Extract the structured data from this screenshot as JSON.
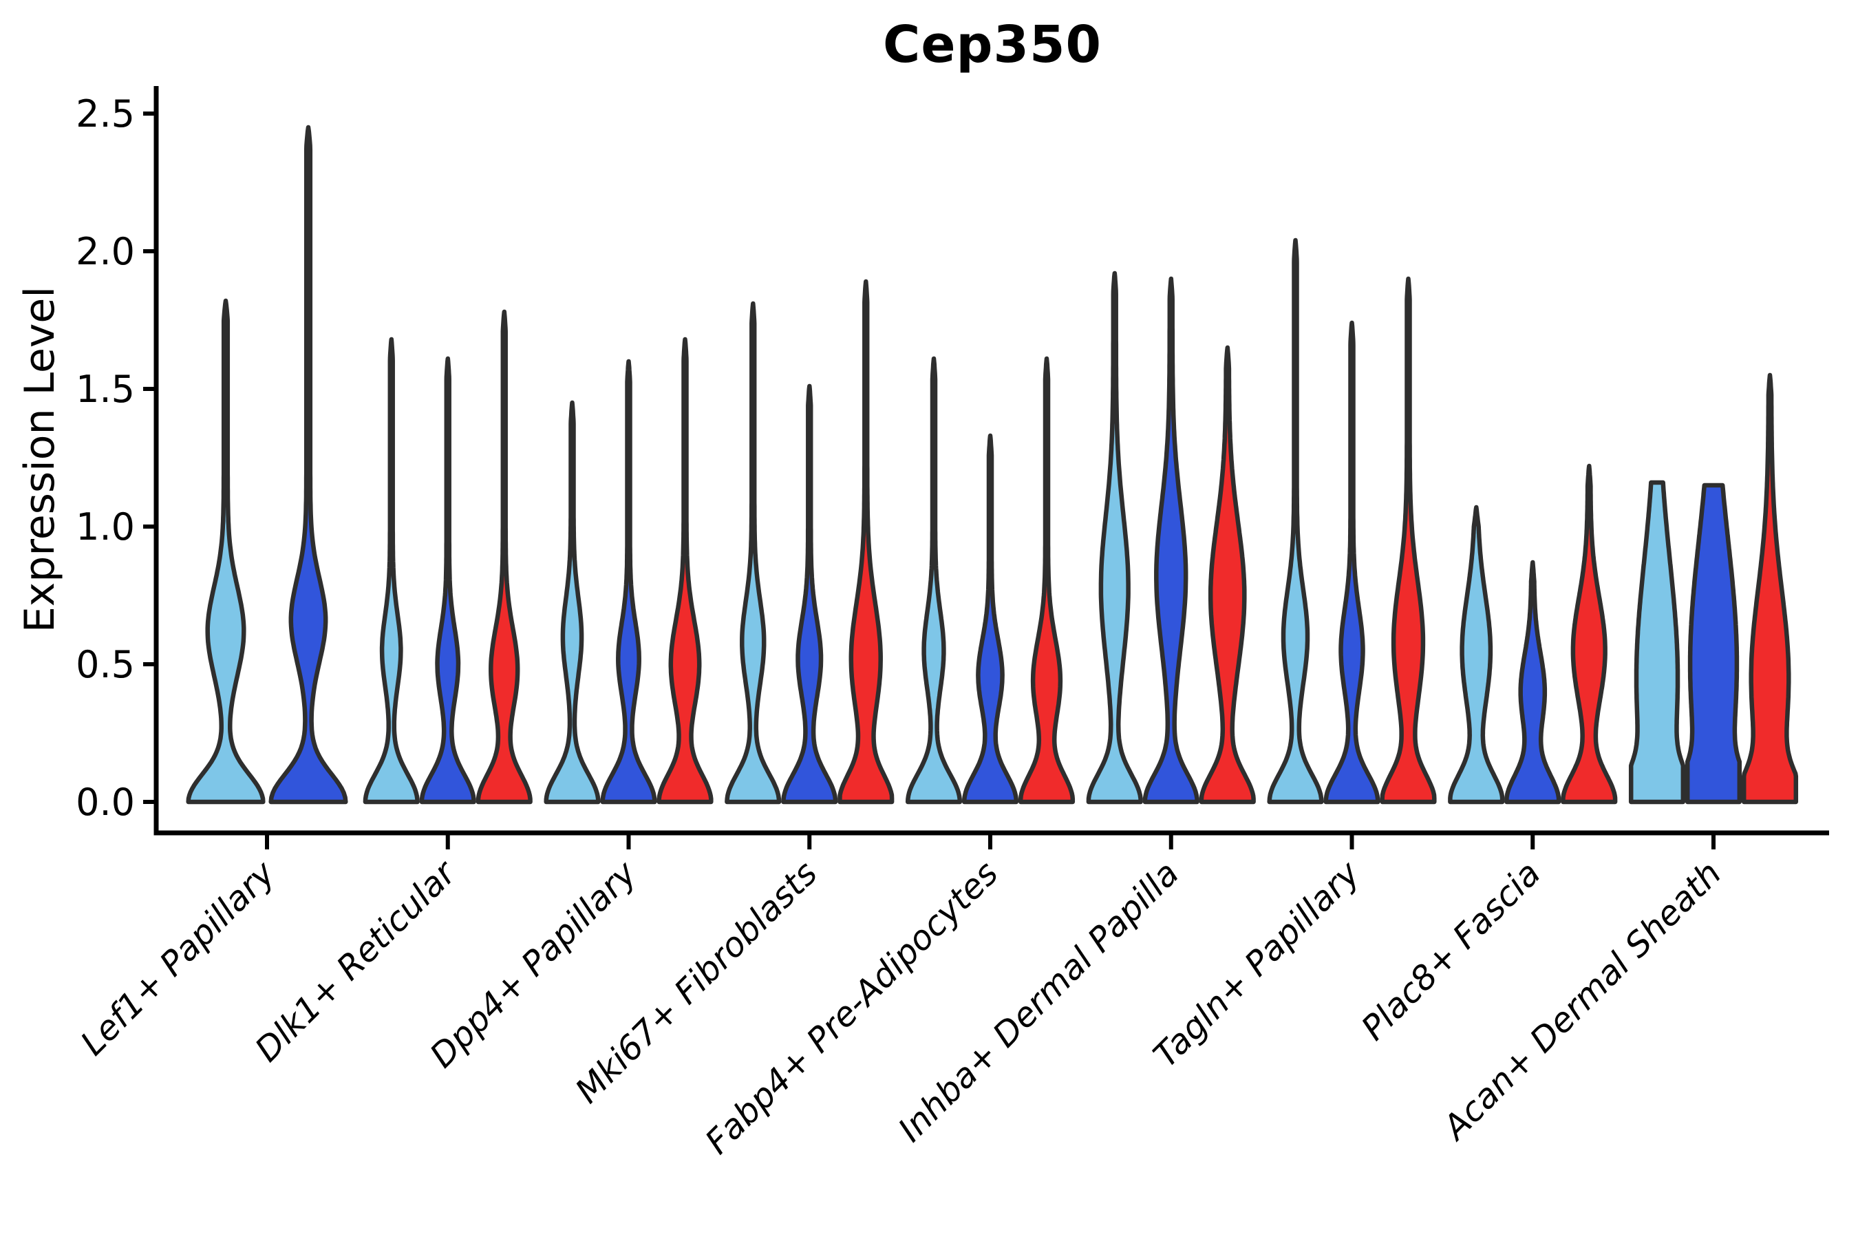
{
  "title": "Cep350",
  "axes": {
    "ylabel": "Expression Level",
    "xlabel": "",
    "ytick_labels": [
      "0.0",
      "0.5",
      "1.0",
      "1.5",
      "2.0",
      "2.5"
    ],
    "ytick_values": [
      0.0,
      0.5,
      1.0,
      1.5,
      2.0,
      2.5
    ]
  },
  "palette": {
    "light_blue": "#7EC6E8",
    "royal_blue": "#3155DB",
    "red": "#F02B2B",
    "edge": "#2E2E2E",
    "axis": "#000000"
  },
  "chart_data": {
    "type": "violin",
    "title": "Cep350",
    "xlabel": "",
    "ylabel": "Expression Level",
    "ylim": [
      0,
      2.72
    ],
    "yticks": [
      0.0,
      0.5,
      1.0,
      1.5,
      2.0,
      2.5
    ],
    "grid": false,
    "legend_position": "none",
    "x_tick_rotation_deg": 45,
    "categories": [
      "Lef1+ Papillary",
      "Dlk1+ Reticular",
      "Dpp4+ Papillary",
      "Mki67+ Fibroblasts",
      "Fabp4+ Pre-Adipocytes",
      "Inhba+ Dermal Papilla",
      "Tagln+ Papillary",
      "Plac8+ Fascia",
      "Acan+ Dermal Sheath"
    ],
    "groups": [
      {
        "category": "Lef1+ Papillary",
        "violins": [
          {
            "color": "light_blue",
            "max_expression": 1.82,
            "bulge_center": 0.62,
            "bulge_sigma": 0.16,
            "bulge_amp": 0.42,
            "blunt_top": false
          },
          {
            "color": "royal_blue",
            "max_expression": 2.45,
            "bulge_center": 0.66,
            "bulge_sigma": 0.15,
            "bulge_amp": 0.4,
            "blunt_top": false
          }
        ]
      },
      {
        "category": "Dlk1+ Reticular",
        "violins": [
          {
            "color": "light_blue",
            "max_expression": 1.68,
            "bulge_center": 0.55,
            "bulge_sigma": 0.13,
            "bulge_amp": 0.3,
            "blunt_top": false
          },
          {
            "color": "royal_blue",
            "max_expression": 1.61,
            "bulge_center": 0.5,
            "bulge_sigma": 0.13,
            "bulge_amp": 0.34,
            "blunt_top": false
          },
          {
            "color": "red",
            "max_expression": 1.78,
            "bulge_center": 0.48,
            "bulge_sigma": 0.15,
            "bulge_amp": 0.45,
            "blunt_top": false
          }
        ]
      },
      {
        "category": "Dpp4+ Papillary",
        "violins": [
          {
            "color": "light_blue",
            "max_expression": 1.45,
            "bulge_center": 0.6,
            "bulge_sigma": 0.14,
            "bulge_amp": 0.3,
            "blunt_top": false
          },
          {
            "color": "royal_blue",
            "max_expression": 1.6,
            "bulge_center": 0.52,
            "bulge_sigma": 0.13,
            "bulge_amp": 0.34,
            "blunt_top": false
          },
          {
            "color": "red",
            "max_expression": 1.68,
            "bulge_center": 0.5,
            "bulge_sigma": 0.16,
            "bulge_amp": 0.48,
            "blunt_top": false
          }
        ]
      },
      {
        "category": "Mki67+ Fibroblasts",
        "violins": [
          {
            "color": "light_blue",
            "max_expression": 1.81,
            "bulge_center": 0.58,
            "bulge_sigma": 0.15,
            "bulge_amp": 0.36,
            "blunt_top": false
          },
          {
            "color": "royal_blue",
            "max_expression": 1.51,
            "bulge_center": 0.52,
            "bulge_sigma": 0.14,
            "bulge_amp": 0.38,
            "blunt_top": false
          },
          {
            "color": "red",
            "max_expression": 1.89,
            "bulge_center": 0.52,
            "bulge_sigma": 0.2,
            "bulge_amp": 0.5,
            "blunt_top": false
          }
        ]
      },
      {
        "category": "Fabp4+ Pre-Adipocytes",
        "violins": [
          {
            "color": "light_blue",
            "max_expression": 1.61,
            "bulge_center": 0.55,
            "bulge_sigma": 0.14,
            "bulge_amp": 0.32,
            "blunt_top": false
          },
          {
            "color": "royal_blue",
            "max_expression": 1.33,
            "bulge_center": 0.46,
            "bulge_sigma": 0.13,
            "bulge_amp": 0.4,
            "blunt_top": false
          },
          {
            "color": "red",
            "max_expression": 1.61,
            "bulge_center": 0.44,
            "bulge_sigma": 0.15,
            "bulge_amp": 0.46,
            "blunt_top": false
          }
        ]
      },
      {
        "category": "Inhba+ Dermal Papilla",
        "violins": [
          {
            "color": "light_blue",
            "max_expression": 1.92,
            "bulge_center": 0.78,
            "bulge_sigma": 0.26,
            "bulge_amp": 0.46,
            "blunt_top": false
          },
          {
            "color": "royal_blue",
            "max_expression": 1.9,
            "bulge_center": 0.82,
            "bulge_sigma": 0.26,
            "bulge_amp": 0.5,
            "blunt_top": false
          },
          {
            "color": "red",
            "max_expression": 1.65,
            "bulge_center": 0.75,
            "bulge_sigma": 0.26,
            "bulge_amp": 0.58,
            "blunt_top": false
          }
        ]
      },
      {
        "category": "Tagln+ Papillary",
        "violins": [
          {
            "color": "light_blue",
            "max_expression": 2.04,
            "bulge_center": 0.6,
            "bulge_sigma": 0.17,
            "bulge_amp": 0.4,
            "blunt_top": false
          },
          {
            "color": "royal_blue",
            "max_expression": 1.74,
            "bulge_center": 0.55,
            "bulge_sigma": 0.15,
            "bulge_amp": 0.36,
            "blunt_top": false
          },
          {
            "color": "red",
            "max_expression": 1.9,
            "bulge_center": 0.58,
            "bulge_sigma": 0.22,
            "bulge_amp": 0.5,
            "blunt_top": false
          }
        ]
      },
      {
        "category": "Plac8+ Fascia",
        "violins": [
          {
            "color": "light_blue",
            "max_expression": 1.07,
            "bulge_center": 0.55,
            "bulge_sigma": 0.2,
            "bulge_amp": 0.48,
            "blunt_top": false
          },
          {
            "color": "royal_blue",
            "max_expression": 0.87,
            "bulge_center": 0.4,
            "bulge_sigma": 0.14,
            "bulge_amp": 0.4,
            "blunt_top": false
          },
          {
            "color": "red",
            "max_expression": 1.22,
            "bulge_center": 0.55,
            "bulge_sigma": 0.19,
            "bulge_amp": 0.55,
            "blunt_top": false
          }
        ]
      },
      {
        "category": "Acan+ Dermal Sheath",
        "violins": [
          {
            "color": "light_blue",
            "max_expression": 1.16,
            "bulge_center": 0.45,
            "bulge_sigma": 0.42,
            "bulge_amp": 0.72,
            "blunt_top": true
          },
          {
            "color": "royal_blue",
            "max_expression": 1.15,
            "bulge_center": 0.5,
            "bulge_sigma": 0.45,
            "bulge_amp": 0.82,
            "blunt_top": true
          },
          {
            "color": "red",
            "max_expression": 1.55,
            "bulge_center": 0.45,
            "bulge_sigma": 0.32,
            "bulge_amp": 0.65,
            "blunt_top": false
          }
        ]
      }
    ]
  }
}
